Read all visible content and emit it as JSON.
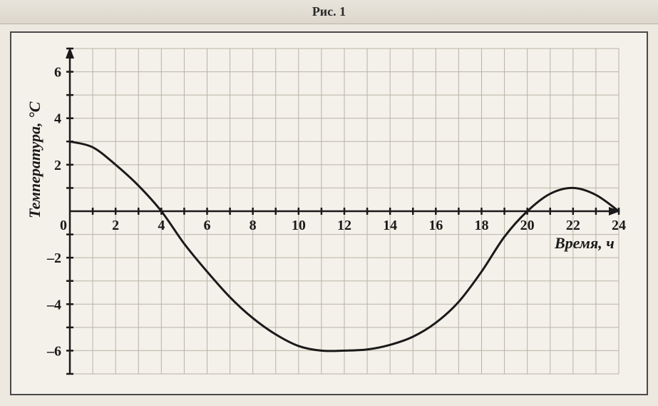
{
  "title": "Рис. 1",
  "chart": {
    "type": "line",
    "background_color": "#f4f1ea",
    "frame_color": "#4a4a4a",
    "grid_color": "#b8b3a6",
    "axis_color": "#1a1a1a",
    "curve_color": "#1a1a1a",
    "curve_width": 3,
    "xlabel": "Время, ч",
    "ylabel": "Температура, °С",
    "xlim": [
      0,
      24
    ],
    "ylim": [
      -7,
      7
    ],
    "x_tick_step": 1,
    "y_tick_step": 1,
    "x_labels": [
      0,
      2,
      4,
      6,
      8,
      10,
      12,
      14,
      16,
      18,
      20,
      22,
      24
    ],
    "y_labels": [
      -6,
      -4,
      -2,
      2,
      4,
      6
    ],
    "tick_fontsize": 20,
    "label_fontsize": 22,
    "data_points": [
      {
        "x": 0,
        "y": 3.0
      },
      {
        "x": 1,
        "y": 2.75
      },
      {
        "x": 2,
        "y": 2.0
      },
      {
        "x": 3,
        "y": 1.1
      },
      {
        "x": 4,
        "y": 0.0
      },
      {
        "x": 5,
        "y": -1.4
      },
      {
        "x": 6,
        "y": -2.6
      },
      {
        "x": 7,
        "y": -3.7
      },
      {
        "x": 8,
        "y": -4.6
      },
      {
        "x": 9,
        "y": -5.3
      },
      {
        "x": 10,
        "y": -5.8
      },
      {
        "x": 11,
        "y": -6.0
      },
      {
        "x": 12,
        "y": -6.0
      },
      {
        "x": 13,
        "y": -5.95
      },
      {
        "x": 14,
        "y": -5.75
      },
      {
        "x": 15,
        "y": -5.4
      },
      {
        "x": 16,
        "y": -4.8
      },
      {
        "x": 17,
        "y": -3.9
      },
      {
        "x": 18,
        "y": -2.6
      },
      {
        "x": 19,
        "y": -1.1
      },
      {
        "x": 20,
        "y": 0.0
      },
      {
        "x": 21,
        "y": 0.75
      },
      {
        "x": 22,
        "y": 1.0
      },
      {
        "x": 23,
        "y": 0.7
      },
      {
        "x": 24,
        "y": 0.0
      }
    ]
  }
}
